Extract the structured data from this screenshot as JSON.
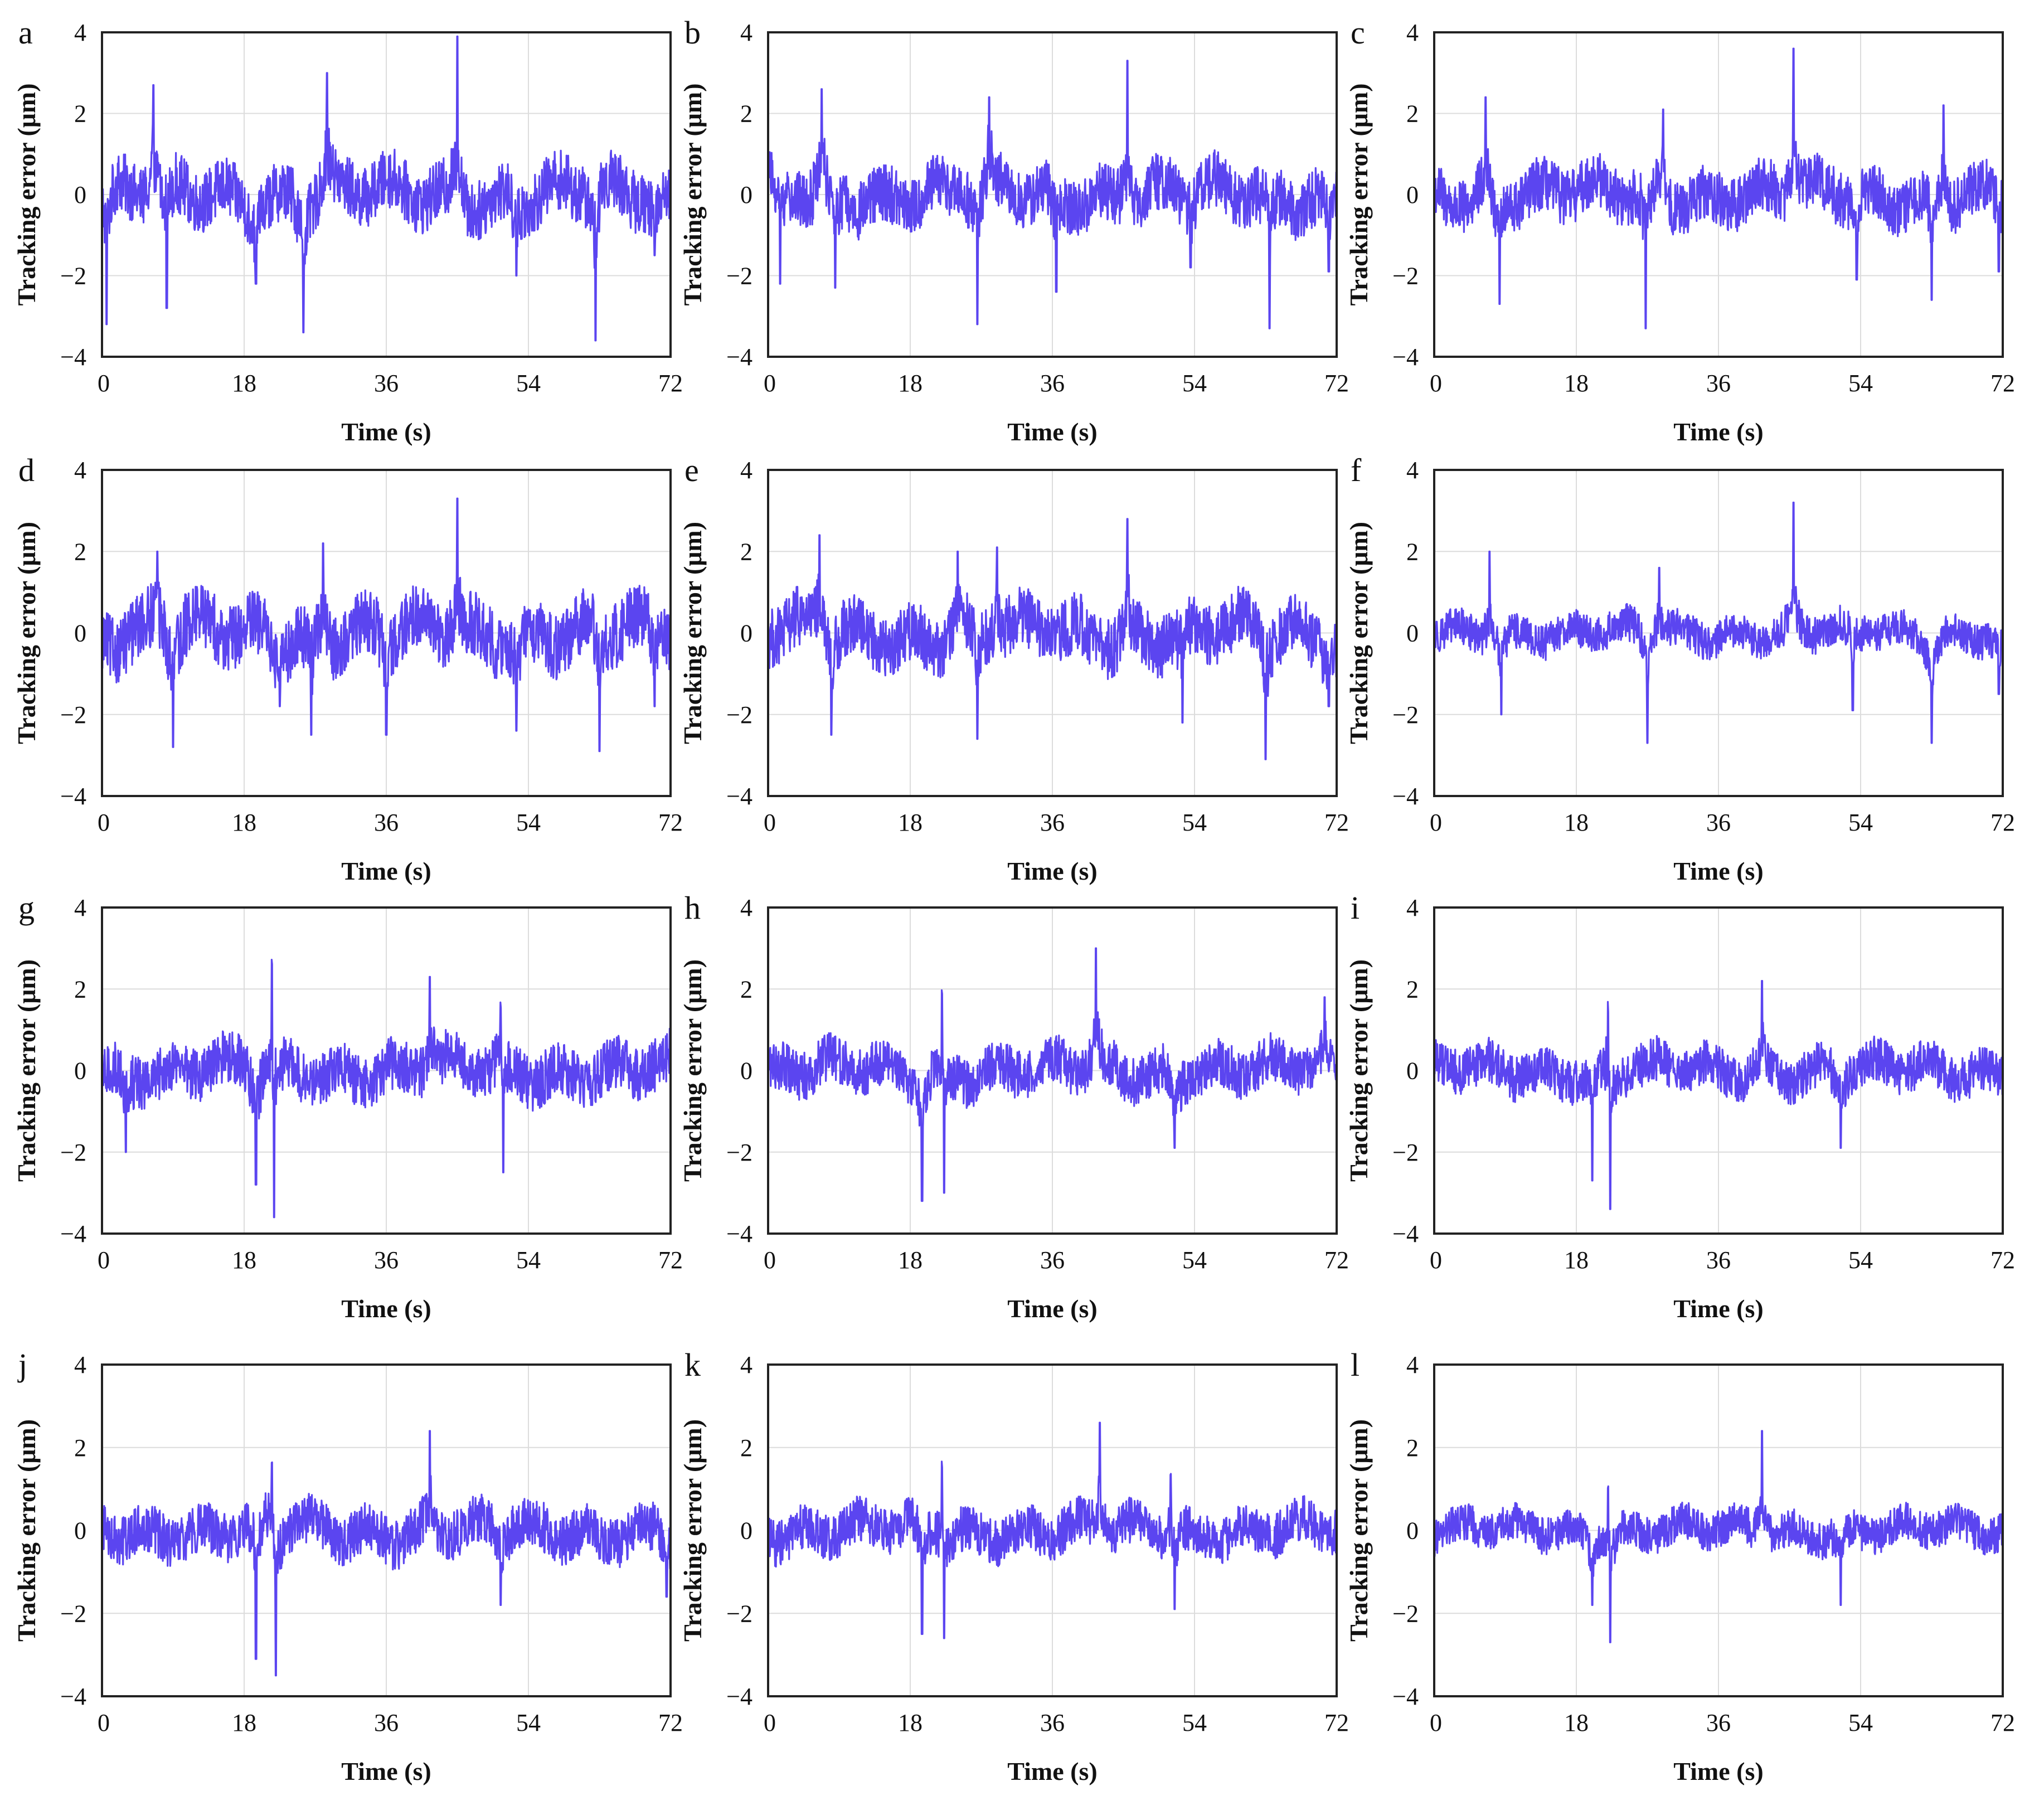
{
  "theme": {
    "series_color": "#5b45f0",
    "frame_color": "#222222",
    "grid_color": "#dcdcdc"
  },
  "chart_data": [
    {
      "panel": "a",
      "type": "line",
      "xlabel": "Time (s)",
      "ylabel": "Tracking error (μm)",
      "xlim": [
        0,
        72
      ],
      "ylim": [
        -4,
        4
      ],
      "xticks": [
        0,
        18,
        36,
        54,
        72
      ],
      "yticks": [
        -4,
        -2,
        0,
        2,
        4
      ],
      "grid": true,
      "noise_amplitude": 0.75,
      "spikes": [
        {
          "x": 0.6,
          "y": -3.2
        },
        {
          "x": 6.5,
          "y": 2.7
        },
        {
          "x": 8.2,
          "y": -2.8
        },
        {
          "x": 19.5,
          "y": -2.2
        },
        {
          "x": 25.5,
          "y": -3.4
        },
        {
          "x": 28.5,
          "y": 3.0
        },
        {
          "x": 45.0,
          "y": 3.9
        },
        {
          "x": 52.5,
          "y": -2.0
        },
        {
          "x": 62.5,
          "y": -3.6
        },
        {
          "x": 70.0,
          "y": -1.5
        }
      ]
    },
    {
      "panel": "b",
      "type": "line",
      "xlabel": "Time (s)",
      "ylabel": "Tracking error (μm)",
      "xlim": [
        0,
        72
      ],
      "ylim": [
        -4,
        4
      ],
      "xticks": [
        0,
        18,
        36,
        54,
        72
      ],
      "yticks": [
        -4,
        -2,
        0,
        2,
        4
      ],
      "grid": true,
      "noise_amplitude": 0.72,
      "spikes": [
        {
          "x": 1.5,
          "y": -2.2
        },
        {
          "x": 6.8,
          "y": 2.6
        },
        {
          "x": 8.5,
          "y": -2.3
        },
        {
          "x": 26.5,
          "y": -3.2
        },
        {
          "x": 28.0,
          "y": 2.4
        },
        {
          "x": 36.5,
          "y": -2.4
        },
        {
          "x": 45.5,
          "y": 3.3
        },
        {
          "x": 53.5,
          "y": -1.8
        },
        {
          "x": 63.5,
          "y": -3.3
        },
        {
          "x": 71.0,
          "y": -1.9
        }
      ]
    },
    {
      "panel": "c",
      "type": "line",
      "xlabel": "Time (s)",
      "ylabel": "Tracking error (μm)",
      "xlim": [
        0,
        72
      ],
      "ylim": [
        -4,
        4
      ],
      "xticks": [
        0,
        18,
        36,
        54,
        72
      ],
      "yticks": [
        -4,
        -2,
        0,
        2,
        4
      ],
      "grid": true,
      "noise_amplitude": 0.68,
      "spikes": [
        {
          "x": 6.5,
          "y": 2.4
        },
        {
          "x": 8.3,
          "y": -2.7
        },
        {
          "x": 26.8,
          "y": -3.3
        },
        {
          "x": 29.0,
          "y": 2.1
        },
        {
          "x": 45.5,
          "y": 3.6
        },
        {
          "x": 53.5,
          "y": -2.1
        },
        {
          "x": 63.0,
          "y": -2.6
        },
        {
          "x": 64.5,
          "y": 2.2
        },
        {
          "x": 71.5,
          "y": -1.9
        }
      ]
    },
    {
      "panel": "d",
      "type": "line",
      "xlabel": "Time (s)",
      "ylabel": "Tracking error (μm)",
      "xlim": [
        0,
        72
      ],
      "ylim": [
        -4,
        4
      ],
      "xticks": [
        0,
        18,
        36,
        54,
        72
      ],
      "yticks": [
        -4,
        -2,
        0,
        2,
        4
      ],
      "grid": true,
      "noise_amplitude": 0.8,
      "spikes": [
        {
          "x": 7.0,
          "y": 2.0
        },
        {
          "x": 9.0,
          "y": -2.8
        },
        {
          "x": 22.5,
          "y": -1.8
        },
        {
          "x": 26.5,
          "y": -2.5
        },
        {
          "x": 28.0,
          "y": 2.2
        },
        {
          "x": 36.0,
          "y": -2.5
        },
        {
          "x": 45.0,
          "y": 3.3
        },
        {
          "x": 52.5,
          "y": -2.4
        },
        {
          "x": 63.0,
          "y": -2.9
        },
        {
          "x": 70.0,
          "y": -1.8
        }
      ]
    },
    {
      "panel": "e",
      "type": "line",
      "xlabel": "Time (s)",
      "ylabel": "Tracking error (μm)",
      "xlim": [
        0,
        72
      ],
      "ylim": [
        -4,
        4
      ],
      "xticks": [
        0,
        18,
        36,
        54,
        72
      ],
      "yticks": [
        -4,
        -2,
        0,
        2,
        4
      ],
      "grid": true,
      "noise_amplitude": 0.75,
      "spikes": [
        {
          "x": 6.5,
          "y": 2.4
        },
        {
          "x": 8.0,
          "y": -2.5
        },
        {
          "x": 24.0,
          "y": 2.0
        },
        {
          "x": 26.5,
          "y": -2.6
        },
        {
          "x": 29.0,
          "y": 2.1
        },
        {
          "x": 45.5,
          "y": 2.8
        },
        {
          "x": 52.5,
          "y": -2.2
        },
        {
          "x": 63.0,
          "y": -3.1
        },
        {
          "x": 71.0,
          "y": -1.8
        }
      ]
    },
    {
      "panel": "f",
      "type": "line",
      "xlabel": "Time (s)",
      "ylabel": "Tracking error (μm)",
      "xlim": [
        0,
        72
      ],
      "ylim": [
        -4,
        4
      ],
      "xticks": [
        0,
        18,
        36,
        54,
        72
      ],
      "yticks": [
        -4,
        -2,
        0,
        2,
        4
      ],
      "grid": true,
      "noise_amplitude": 0.45,
      "spikes": [
        {
          "x": 7.0,
          "y": 2.0
        },
        {
          "x": 8.5,
          "y": -2.0
        },
        {
          "x": 27.0,
          "y": -2.7
        },
        {
          "x": 28.5,
          "y": 1.6
        },
        {
          "x": 45.5,
          "y": 3.2
        },
        {
          "x": 53.0,
          "y": -1.9
        },
        {
          "x": 63.0,
          "y": -2.7
        },
        {
          "x": 71.5,
          "y": -1.5
        }
      ]
    },
    {
      "panel": "g",
      "type": "line",
      "xlabel": "Time (s)",
      "ylabel": "Tracking error (μm)",
      "xlim": [
        0,
        72
      ],
      "ylim": [
        -4,
        4
      ],
      "xticks": [
        0,
        18,
        36,
        54,
        72
      ],
      "yticks": [
        -4,
        -2,
        0,
        2,
        4
      ],
      "grid": true,
      "noise_amplitude": 0.65,
      "spikes": [
        {
          "x": 3.0,
          "y": -2.0
        },
        {
          "x": 19.5,
          "y": -2.8
        },
        {
          "x": 21.5,
          "y": 3.4
        },
        {
          "x": 21.8,
          "y": -3.6
        },
        {
          "x": 41.5,
          "y": 2.3
        },
        {
          "x": 50.5,
          "y": 2.0
        },
        {
          "x": 50.8,
          "y": -2.5
        }
      ]
    },
    {
      "panel": "h",
      "type": "line",
      "xlabel": "Time (s)",
      "ylabel": "Tracking error (μm)",
      "xlim": [
        0,
        72
      ],
      "ylim": [
        -4,
        4
      ],
      "xticks": [
        0,
        18,
        36,
        54,
        72
      ],
      "yticks": [
        -4,
        -2,
        0,
        2,
        4
      ],
      "grid": true,
      "noise_amplitude": 0.6,
      "spikes": [
        {
          "x": 19.5,
          "y": -3.2
        },
        {
          "x": 22.0,
          "y": 2.5
        },
        {
          "x": 22.3,
          "y": -3.0
        },
        {
          "x": 41.5,
          "y": 3.0
        },
        {
          "x": 51.5,
          "y": -1.9
        },
        {
          "x": 70.5,
          "y": 1.8
        }
      ]
    },
    {
      "panel": "i",
      "type": "line",
      "xlabel": "Time (s)",
      "ylabel": "Tracking error (μm)",
      "xlim": [
        0,
        72
      ],
      "ylim": [
        -4,
        4
      ],
      "xticks": [
        0,
        18,
        36,
        54,
        72
      ],
      "yticks": [
        -4,
        -2,
        0,
        2,
        4
      ],
      "grid": true,
      "noise_amplitude": 0.55,
      "spikes": [
        {
          "x": 20.0,
          "y": -2.7
        },
        {
          "x": 22.0,
          "y": 2.3
        },
        {
          "x": 22.3,
          "y": -3.4
        },
        {
          "x": 41.5,
          "y": 2.2
        },
        {
          "x": 51.5,
          "y": -1.9
        }
      ]
    },
    {
      "panel": "j",
      "type": "line",
      "xlabel": "Time (s)",
      "ylabel": "Tracking error (μm)",
      "xlim": [
        0,
        72
      ],
      "ylim": [
        -4,
        4
      ],
      "xticks": [
        0,
        18,
        36,
        54,
        72
      ],
      "yticks": [
        -4,
        -2,
        0,
        2,
        4
      ],
      "grid": true,
      "noise_amplitude": 0.6,
      "spikes": [
        {
          "x": 19.5,
          "y": -3.1
        },
        {
          "x": 21.5,
          "y": 2.1
        },
        {
          "x": 22.0,
          "y": -3.5
        },
        {
          "x": 41.5,
          "y": 2.4
        },
        {
          "x": 50.5,
          "y": -1.8
        },
        {
          "x": 71.5,
          "y": -1.6
        }
      ]
    },
    {
      "panel": "k",
      "type": "line",
      "xlabel": "Time (s)",
      "ylabel": "Tracking error (μm)",
      "xlim": [
        0,
        72
      ],
      "ylim": [
        -4,
        4
      ],
      "xticks": [
        0,
        18,
        36,
        54,
        72
      ],
      "yticks": [
        -4,
        -2,
        0,
        2,
        4
      ],
      "grid": true,
      "noise_amplitude": 0.55,
      "spikes": [
        {
          "x": 19.5,
          "y": -2.5
        },
        {
          "x": 22.0,
          "y": 2.1
        },
        {
          "x": 22.3,
          "y": -2.6
        },
        {
          "x": 42.0,
          "y": 2.6
        },
        {
          "x": 51.0,
          "y": 1.6
        },
        {
          "x": 51.5,
          "y": -1.9
        }
      ]
    },
    {
      "panel": "l",
      "type": "line",
      "xlabel": "Time (s)",
      "ylabel": "Tracking error (μm)",
      "xlim": [
        0,
        72
      ],
      "ylim": [
        -4,
        4
      ],
      "xticks": [
        0,
        18,
        36,
        54,
        72
      ],
      "yticks": [
        -4,
        -2,
        0,
        2,
        4
      ],
      "grid": true,
      "noise_amplitude": 0.45,
      "spikes": [
        {
          "x": 20.0,
          "y": -1.8
        },
        {
          "x": 22.0,
          "y": 1.6
        },
        {
          "x": 22.3,
          "y": -2.7
        },
        {
          "x": 41.5,
          "y": 2.4
        },
        {
          "x": 51.5,
          "y": -1.8
        }
      ]
    }
  ]
}
